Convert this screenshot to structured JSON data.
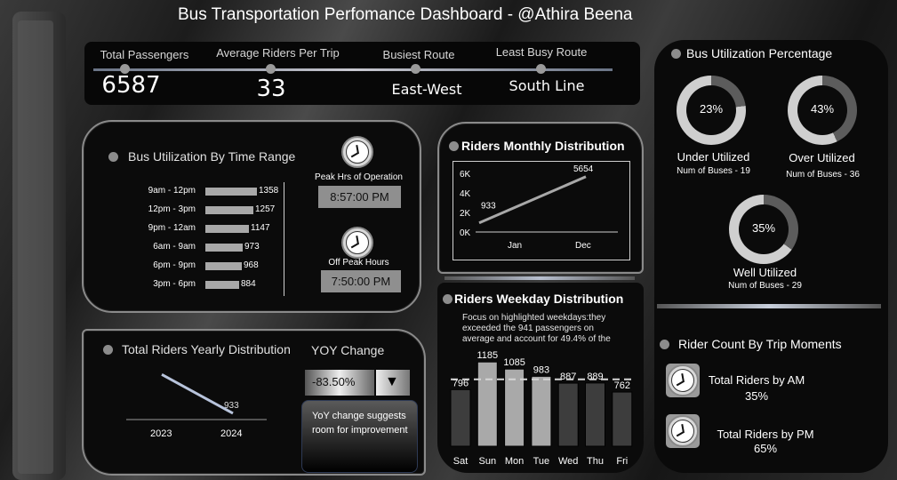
{
  "title": "Bus Transportation Perfomance Dashboard  - @Athira Beena",
  "kpis": [
    {
      "label": "Total Passengers",
      "value": "6587"
    },
    {
      "label": "Average Riders Per Trip",
      "value": "33"
    },
    {
      "label": "Busiest Route",
      "value": "East-West"
    },
    {
      "label": "Least Busy Route",
      "value": "South Line"
    }
  ],
  "time_range": {
    "title": "Bus Utilization By Time Range",
    "rows": [
      {
        "label": "9am - 12pm",
        "value": 1358
      },
      {
        "label": "12pm - 3pm",
        "value": 1257
      },
      {
        "label": "9pm - 12am",
        "value": 1147
      },
      {
        "label": "6am - 9am",
        "value": 973
      },
      {
        "label": "6pm - 9pm",
        "value": 968
      },
      {
        "label": "3pm - 6pm",
        "value": 884
      }
    ],
    "peak_label": "Peak Hrs of Operation",
    "peak_value": "8:57:00 PM",
    "offpeak_label": "Off Peak Hours",
    "offpeak_value": "7:50:00 PM"
  },
  "monthly": {
    "title": "Riders Monthly Distribution",
    "y_ticks": [
      "6K",
      "4K",
      "2K",
      "0K"
    ],
    "x_labels": [
      "Jan",
      "Dec"
    ],
    "values": [
      933,
      5654
    ],
    "ymax": 6000
  },
  "yearly": {
    "title": "Total Riders Yearly Distribution",
    "x_labels": [
      "2023",
      "2024"
    ],
    "values": [
      5654,
      933
    ],
    "yoy_title": "YOY Change",
    "yoy_value": "-83.50%",
    "yoy_arrow": "▼",
    "yoy_note": "YoY change suggests room for improvement"
  },
  "weekday": {
    "title": "Riders Weekday Distribution",
    "note": "Focus on highlighted weekdays:they exceeded the 941 passengers on average and account for 49.4% of the",
    "days": [
      "Sat",
      "Sun",
      "Mon",
      "Tue",
      "Wed",
      "Thu",
      "Fri"
    ],
    "values": [
      796,
      1185,
      1085,
      983,
      887,
      889,
      762
    ],
    "highlight": [
      false,
      true,
      true,
      true,
      false,
      false,
      false
    ],
    "average": 941,
    "ymax": 1300,
    "colors": {
      "highlight": "#a9a9a9",
      "normal": "#3d3d3d"
    }
  },
  "utilization": {
    "title": "Bus Utilization Percentage",
    "items": [
      {
        "pct": "23%",
        "value": 23,
        "label": "Under Utilized",
        "sub": "Num of Buses - 19"
      },
      {
        "pct": "43%",
        "value": 43,
        "label": "Over Utilized",
        "sub": "Num of Buses - 36"
      },
      {
        "pct": "35%",
        "value": 35,
        "label": "Well Utilized",
        "sub": "Num of Buses - 29"
      }
    ]
  },
  "trip_moments": {
    "title": "Rider Count By Trip Moments",
    "am_label": "Total Riders by AM",
    "am_value": "35%",
    "pm_label": "Total Riders by PM",
    "pm_value": "65%"
  }
}
